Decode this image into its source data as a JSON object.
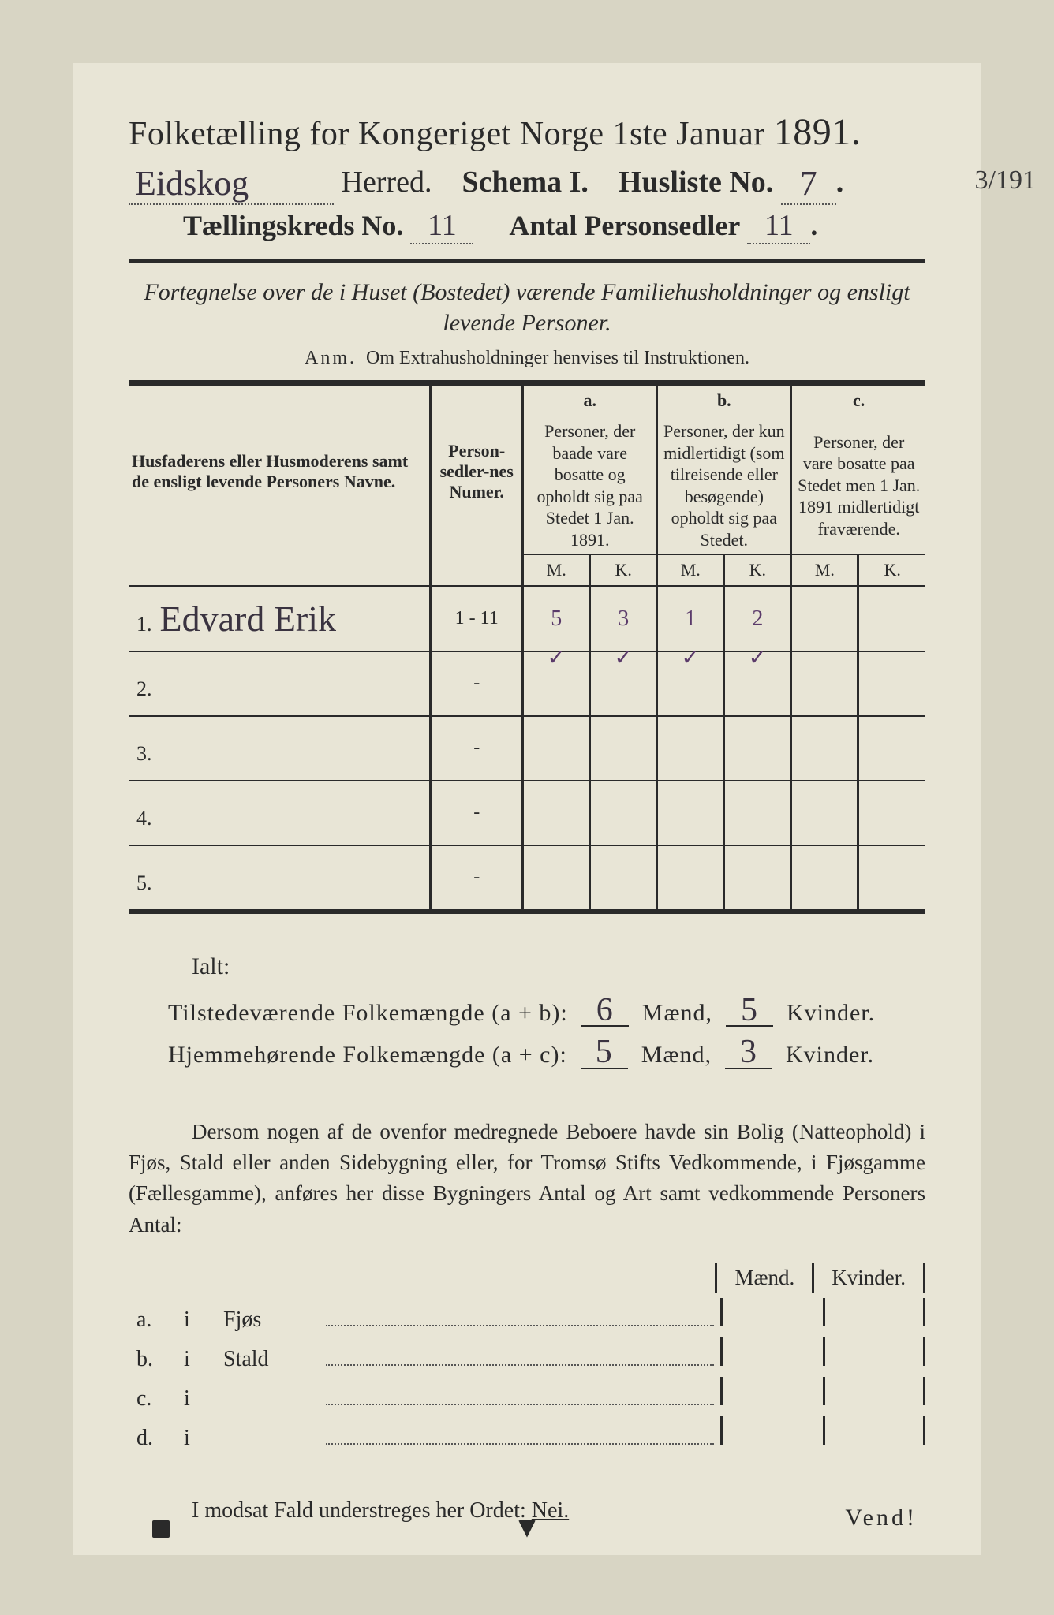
{
  "colors": {
    "page_bg": "#e8e5d6",
    "outer_bg": "#d8d5c4",
    "ink": "#2a2a2a",
    "handwriting": "#3a3340",
    "handwriting_purple": "#5a3a6a"
  },
  "margin_note": "3/191",
  "header": {
    "title_main": "Folketælling for Kongeriget Norge 1ste Januar",
    "title_year": "1891.",
    "herred_hw": "Eidskog",
    "herred_label": "Herred.",
    "schema_label": "Schema I.",
    "husliste_label": "Husliste No.",
    "husliste_no_hw": "7",
    "kreds_label": "Tællingskreds No.",
    "kreds_no_hw": "11",
    "antal_label": "Antal Personsedler",
    "antal_hw": "11"
  },
  "subtitle": "Fortegnelse over de i Huset (Bostedet) værende Familiehusholdninger og ensligt levende Personer.",
  "anm_label": "Anm.",
  "anm_text": "Om Extrahusholdninger henvises til Instruktionen.",
  "table": {
    "col_name_header": "Husfaderens eller Husmoderens samt de ensligt levende Personers Navne.",
    "col_num_header": "Person-sedler-nes Numer.",
    "col_a_label": "a.",
    "col_a_text": "Personer, der baade vare bosatte og opholdt sig paa Stedet 1 Jan. 1891.",
    "col_b_label": "b.",
    "col_b_text": "Personer, der kun midlertidigt (som tilreisende eller besøgende) opholdt sig paa Stedet.",
    "col_c_label": "c.",
    "col_c_text": "Personer, der vare bosatte paa Stedet men 1 Jan. 1891 midlertidigt fraværende.",
    "mk_m": "M.",
    "mk_k": "K.",
    "rows": [
      {
        "n": "1.",
        "name": "Edvard Erik",
        "num": "1 - 11",
        "a_m": "5",
        "a_k": "3",
        "b_m": "1",
        "b_k": "2",
        "c_m": "",
        "c_k": "",
        "ticks": true
      },
      {
        "n": "2.",
        "name": "",
        "num": "-",
        "a_m": "",
        "a_k": "",
        "b_m": "",
        "b_k": "",
        "c_m": "",
        "c_k": "",
        "ticks": false
      },
      {
        "n": "3.",
        "name": "",
        "num": "-",
        "a_m": "",
        "a_k": "",
        "b_m": "",
        "b_k": "",
        "c_m": "",
        "c_k": "",
        "ticks": false
      },
      {
        "n": "4.",
        "name": "",
        "num": "-",
        "a_m": "",
        "a_k": "",
        "b_m": "",
        "b_k": "",
        "c_m": "",
        "c_k": "",
        "ticks": false
      },
      {
        "n": "5.",
        "name": "",
        "num": "-",
        "a_m": "",
        "a_k": "",
        "b_m": "",
        "b_k": "",
        "c_m": "",
        "c_k": "",
        "ticks": false
      }
    ]
  },
  "ialt_label": "Ialt:",
  "totals": {
    "line1_label": "Tilstedeværende Folkemængde (a + b):",
    "line1_m": "6",
    "line1_k": "5",
    "line2_label": "Hjemmehørende Folkemængde (a + c):",
    "line2_m": "5",
    "line2_k": "3",
    "maend": "Mænd,",
    "kvinder": "Kvinder."
  },
  "paragraph": "Dersom nogen af de ovenfor medregnede Beboere havde sin Bolig (Natteophold) i Fjøs, Stald eller anden Sidebygning eller, for Tromsø Stifts Vedkommende, i Fjøsgamme (Fællesgamme), anføres her disse Bygningers Antal og Art samt vedkommende Personers Antal:",
  "bygn": {
    "head_m": "Mænd.",
    "head_k": "Kvinder.",
    "rows": [
      {
        "lbl": "a.",
        "i": "i",
        "type": "Fjøs"
      },
      {
        "lbl": "b.",
        "i": "i",
        "type": "Stald"
      },
      {
        "lbl": "c.",
        "i": "i",
        "type": ""
      },
      {
        "lbl": "d.",
        "i": "i",
        "type": ""
      }
    ]
  },
  "modsat_pre": "I modsat Fald understreges her Ordet:",
  "modsat_nei": "Nei.",
  "vend": "Vend!"
}
